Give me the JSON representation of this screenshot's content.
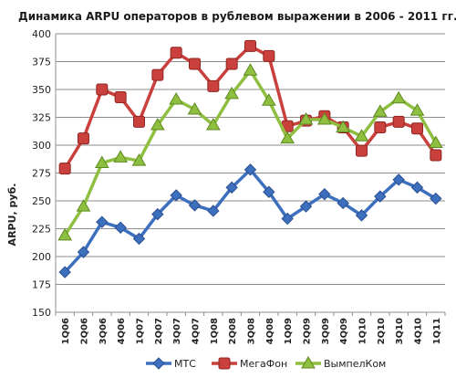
{
  "chart_data": {
    "type": "line",
    "title": "Динамика ARPU операторов в рублевом выражении в 2006 - 2011 гг.",
    "xlabel": "",
    "ylabel": "ARPU, руб.",
    "ylim": [
      150,
      400
    ],
    "yticks": [
      150,
      175,
      200,
      225,
      250,
      275,
      300,
      325,
      350,
      375,
      400
    ],
    "grid": true,
    "legend_position": "bottom",
    "categories": [
      "1Q06",
      "2Q06",
      "3Q06",
      "4Q06",
      "1Q07",
      "2Q07",
      "3Q07",
      "4Q07",
      "1Q08",
      "2Q08",
      "3Q08",
      "4Q08",
      "1Q09",
      "2Q09",
      "3Q09",
      "4Q09",
      "1Q10",
      "2Q10",
      "3Q10",
      "4Q10",
      "1Q11"
    ],
    "series": [
      {
        "name": "МТС",
        "color": "#3d6fbf",
        "marker": "diamond",
        "values": [
          186,
          204,
          231,
          226,
          216,
          238,
          255,
          246,
          241,
          262,
          278,
          258,
          234,
          245,
          256,
          248,
          237,
          254,
          269,
          262,
          252
        ]
      },
      {
        "name": "МегаФон",
        "color": "#c9403c",
        "marker": "square",
        "values": [
          279,
          306,
          350,
          343,
          321,
          363,
          383,
          373,
          353,
          373,
          389,
          380,
          317,
          322,
          326,
          316,
          295,
          316,
          321,
          315,
          291
        ]
      },
      {
        "name": "ВымпелКом",
        "color": "#8fbf40",
        "marker": "triangle",
        "values": [
          219,
          245,
          284,
          289,
          286,
          318,
          341,
          332,
          318,
          346,
          367,
          340,
          306,
          323,
          323,
          316,
          308,
          330,
          342,
          331,
          302
        ]
      }
    ]
  }
}
